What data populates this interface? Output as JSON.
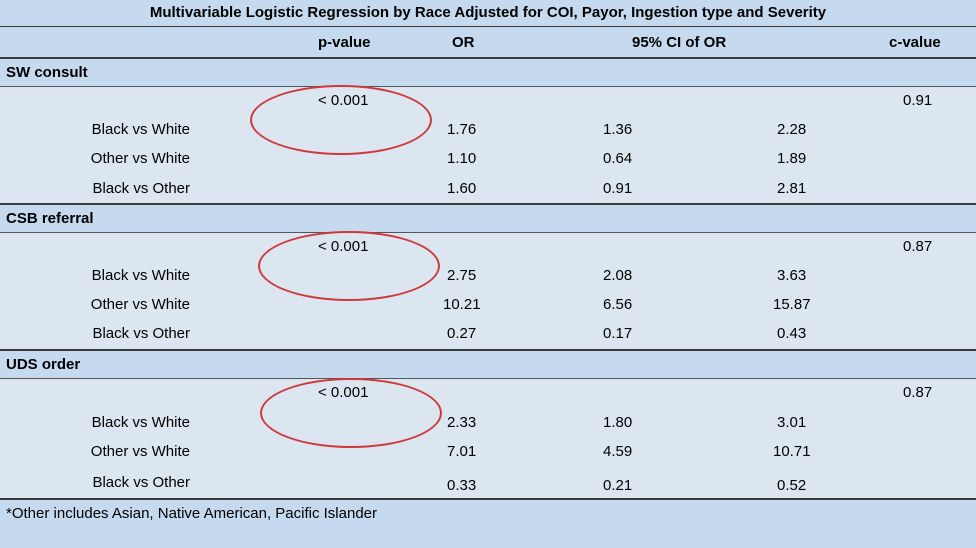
{
  "title": "Multivariable Logistic Regression by Race Adjusted for COI, Payor, Ingestion type and Severity",
  "columns": {
    "pvalue": "p-value",
    "or": "OR",
    "ci": "95% CI of OR",
    "cvalue": "c-value"
  },
  "sections": [
    {
      "name": "SW consult",
      "pvalue": "< 0.001",
      "cvalue": "0.91",
      "rows": [
        {
          "label": "Black vs White",
          "or": "1.76",
          "lo": "1.36",
          "hi": "2.28"
        },
        {
          "label": "Other vs  White",
          "or": "1.10",
          "lo": "0.64",
          "hi": "1.89"
        },
        {
          "label": "Black vs Other",
          "or": "1.60",
          "lo": "0.91",
          "hi": "2.81"
        }
      ]
    },
    {
      "name": "CSB referral",
      "pvalue": "< 0.001",
      "cvalue": "0.87",
      "rows": [
        {
          "label": "Black vs White",
          "or": "2.75",
          "lo": "2.08",
          "hi": "3.63"
        },
        {
          "label": "Other vs White",
          "or": "10.21",
          "lo": "6.56",
          "hi": "15.87"
        },
        {
          "label": "Black vs Other",
          "or": "0.27",
          "lo": "0.17",
          "hi": "0.43"
        }
      ]
    },
    {
      "name": "UDS order",
      "pvalue": "< 0.001",
      "cvalue": "0.87",
      "rows": [
        {
          "label": "Black vs White",
          "or": "2.33",
          "lo": "1.80",
          "hi": "3.01"
        },
        {
          "label": "Other vs White",
          "or": "7.01",
          "lo": "4.59",
          "hi": "10.71"
        },
        {
          "label": "Black vs Other",
          "or": "0.33",
          "lo": "0.21",
          "hi": "0.52"
        }
      ]
    }
  ],
  "footnote": "*Other includes Asian, Native American, Pacific Islander",
  "colors": {
    "header_bg": "#c5d9ef",
    "body_bg": "#dce6f1",
    "annotation_ring": "#d0393b"
  }
}
